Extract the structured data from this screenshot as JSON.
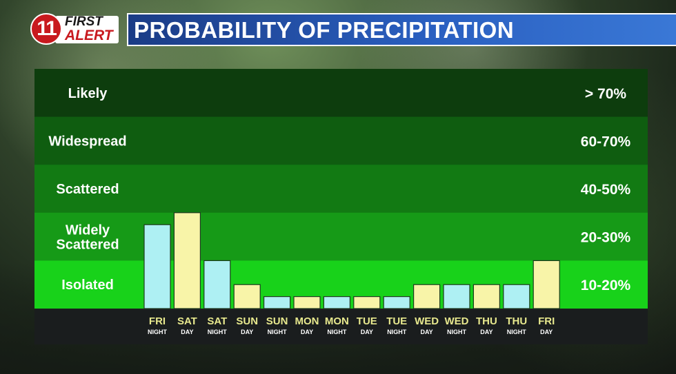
{
  "logo": {
    "channel": "11",
    "first": "FIRST",
    "alert": "ALERT"
  },
  "title": "PROBABILITY OF PRECIPITATION",
  "chart_data": {
    "type": "bar",
    "bands": [
      {
        "label": "Likely",
        "range": "> 70%",
        "color": "#0d3d0d"
      },
      {
        "label": "Widespread",
        "range": "60-70%",
        "color": "#0f5d10"
      },
      {
        "label": "Scattered",
        "range": "40-50%",
        "color": "#127a13"
      },
      {
        "label": [
          "Widely",
          "Scattered"
        ],
        "range": "20-30%",
        "color": "#169a17"
      },
      {
        "label": "Isolated",
        "range": "10-20%",
        "color": "#18d21a"
      }
    ],
    "categories": [
      {
        "day": "FRI",
        "part": "NIGHT"
      },
      {
        "day": "SAT",
        "part": "DAY"
      },
      {
        "day": "SAT",
        "part": "NIGHT"
      },
      {
        "day": "SUN",
        "part": "DAY"
      },
      {
        "day": "SUN",
        "part": "NIGHT"
      },
      {
        "day": "MON",
        "part": "DAY"
      },
      {
        "day": "MON",
        "part": "NIGHT"
      },
      {
        "day": "TUE",
        "part": "DAY"
      },
      {
        "day": "TUE",
        "part": "NIGHT"
      },
      {
        "day": "WED",
        "part": "DAY"
      },
      {
        "day": "WED",
        "part": "NIGHT"
      },
      {
        "day": "THU",
        "part": "DAY"
      },
      {
        "day": "THU",
        "part": "NIGHT"
      },
      {
        "day": "FRI",
        "part": "DAY"
      }
    ],
    "level_units": "band index (0 = bottom of Isolated band, 5 = top of Likely band)",
    "values": [
      1.75,
      2.0,
      1.0,
      0.5,
      0.25,
      0.25,
      0.25,
      0.25,
      0.25,
      0.5,
      0.5,
      0.5,
      0.5,
      1.0
    ],
    "day_bar_color": "#f8f4a8",
    "night_bar_color": "#aef0f3",
    "axis_strip_color": "#1a1d1e",
    "tick_text_color": "#e8e98e"
  }
}
